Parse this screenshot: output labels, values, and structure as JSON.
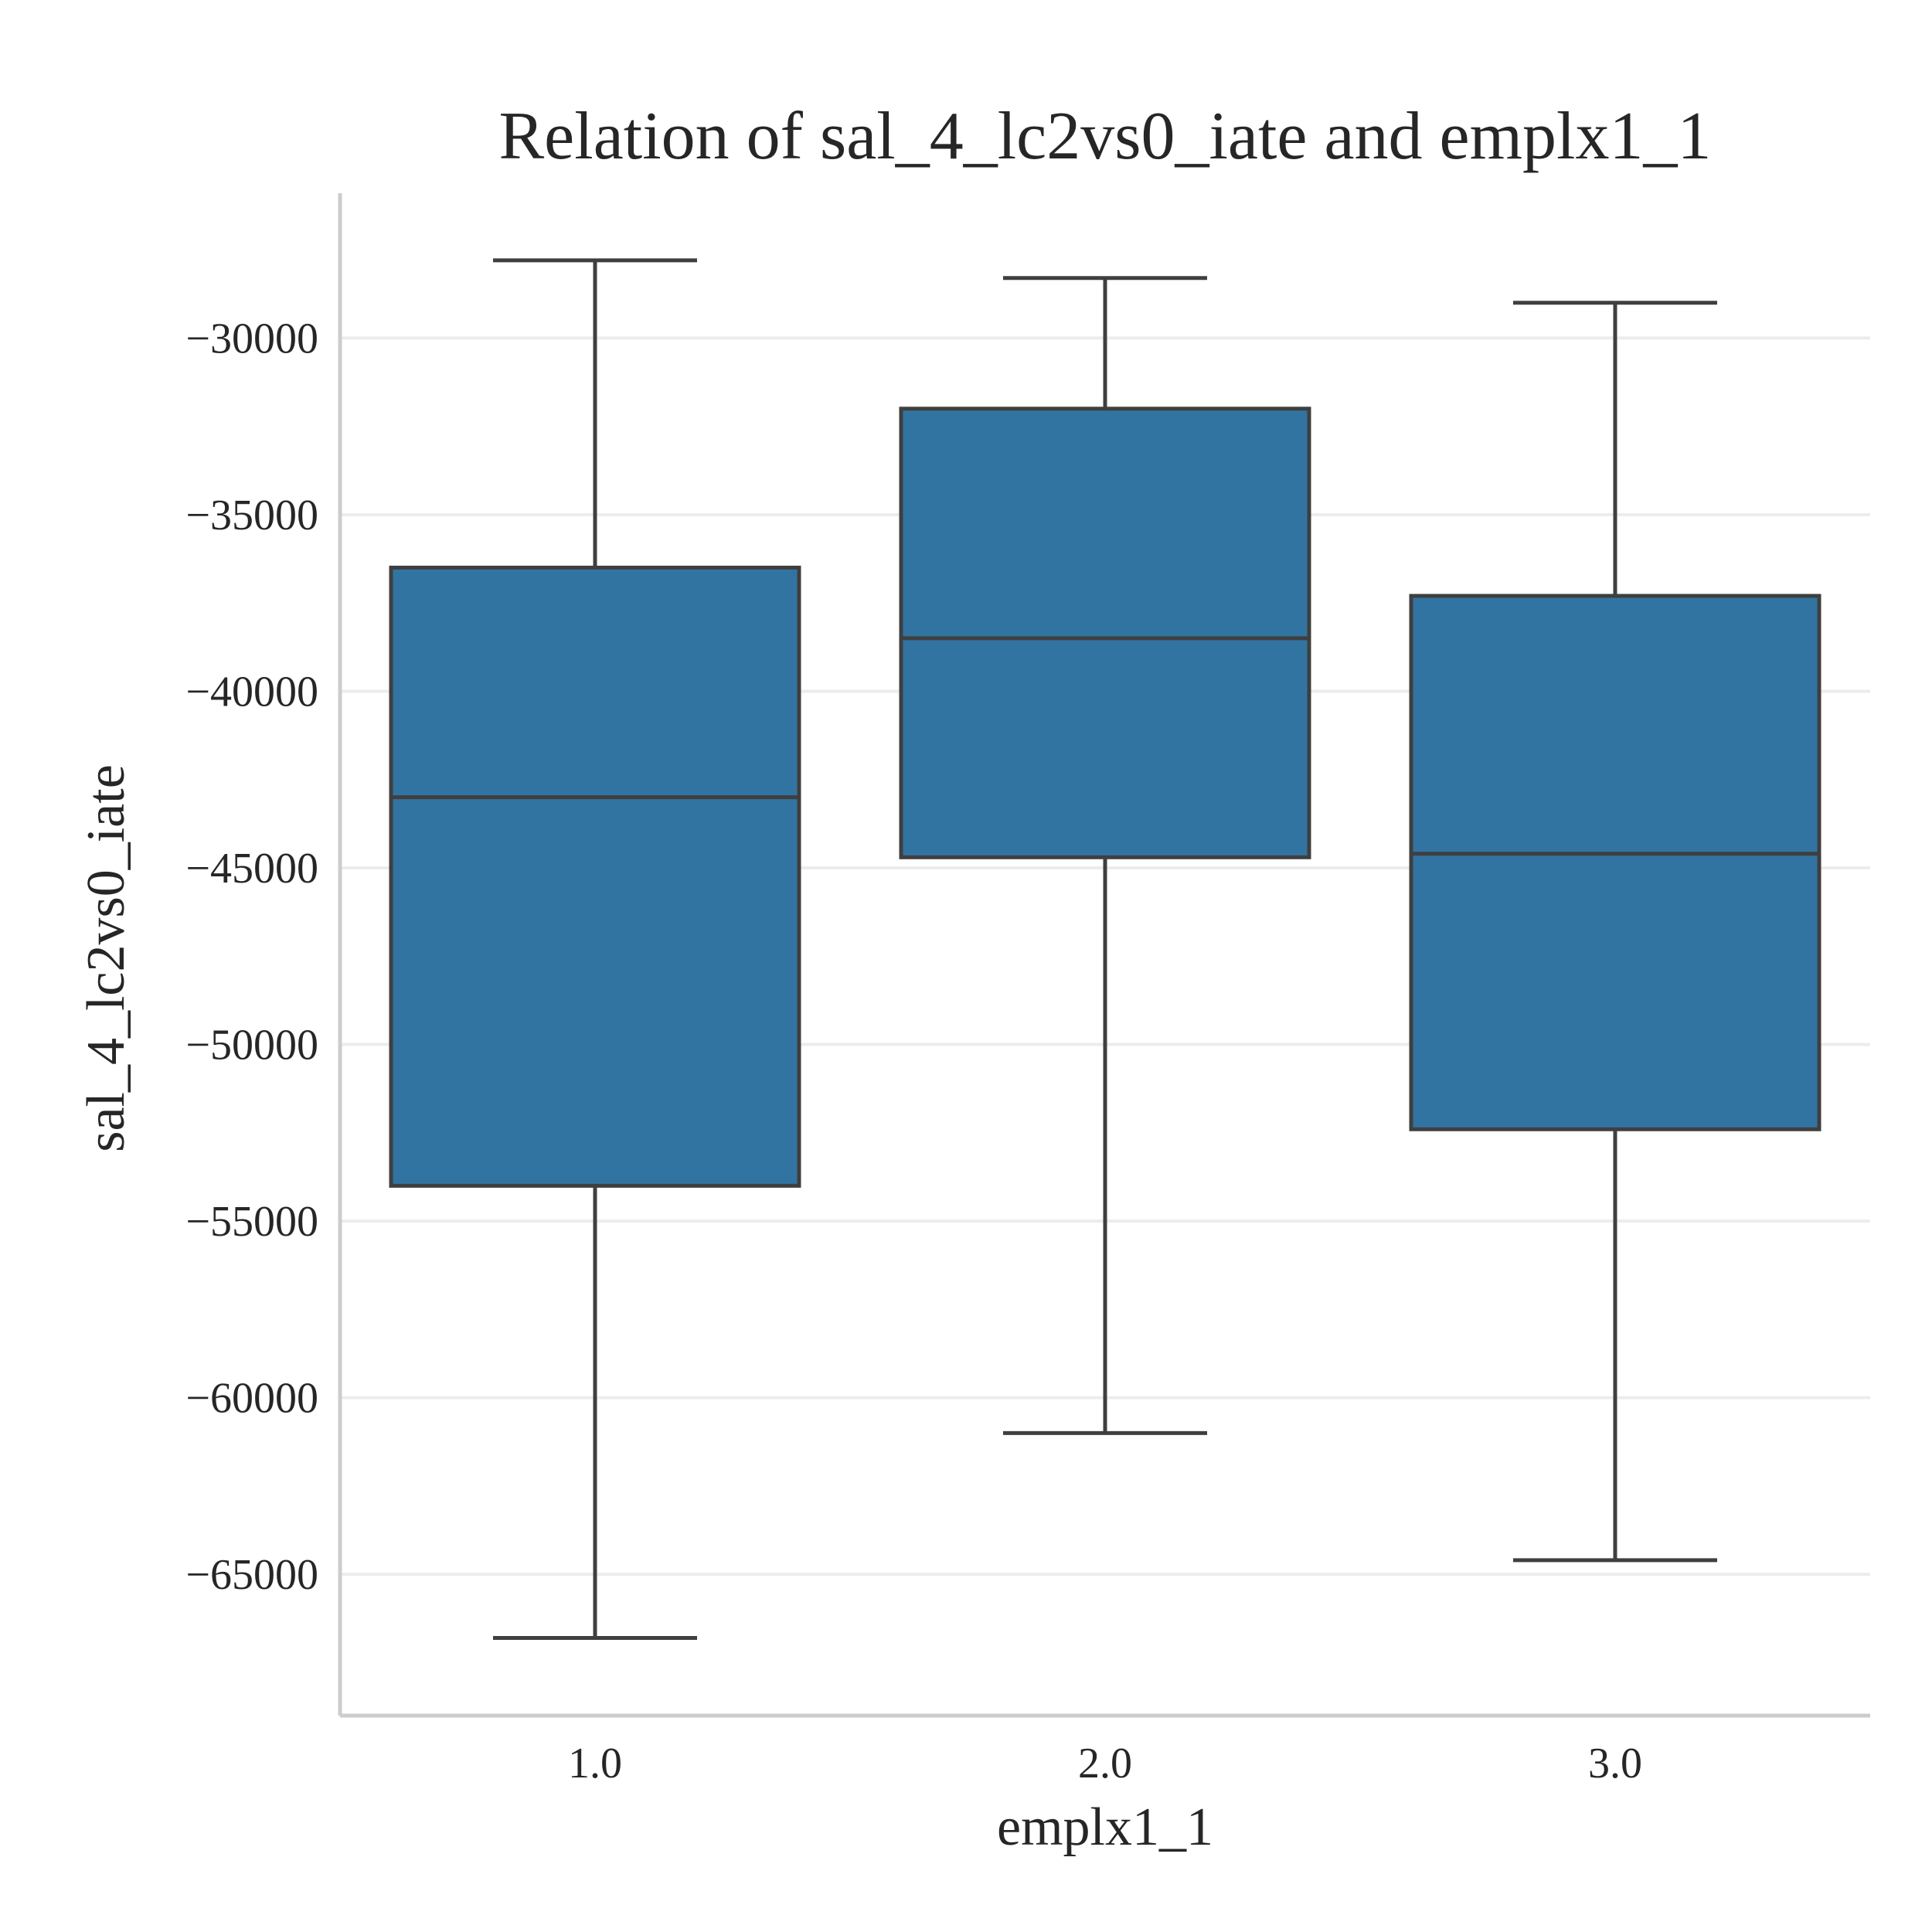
{
  "chart_data": {
    "type": "box",
    "title": "Relation of sal_4_lc2vs0_iate and emplx1_1",
    "xlabel": "emplx1_1",
    "ylabel": "sal_4_lc2vs0_iate",
    "categories": [
      "1.0",
      "2.0",
      "3.0"
    ],
    "boxes": [
      {
        "category": "1.0",
        "whisker_low": -66800,
        "q1": -54000,
        "median": -43000,
        "q3": -36500,
        "whisker_high": -27800
      },
      {
        "category": "2.0",
        "whisker_low": -61000,
        "q1": -44700,
        "median": -38500,
        "q3": -32000,
        "whisker_high": -28300
      },
      {
        "category": "3.0",
        "whisker_low": -64600,
        "q1": -52400,
        "median": -44600,
        "q3": -37300,
        "whisker_high": -29000
      }
    ],
    "ylim": [
      -69000,
      -25900
    ],
    "yticks": [
      -30000,
      -35000,
      -40000,
      -45000,
      -50000,
      -55000,
      -60000,
      -65000
    ],
    "ytick_labels": [
      "−30000",
      "−35000",
      "−40000",
      "−45000",
      "−50000",
      "−55000",
      "−60000",
      "−65000"
    ],
    "grid": "horizontal",
    "box_color": "#3274a1",
    "line_color": "#3f3f3f"
  }
}
